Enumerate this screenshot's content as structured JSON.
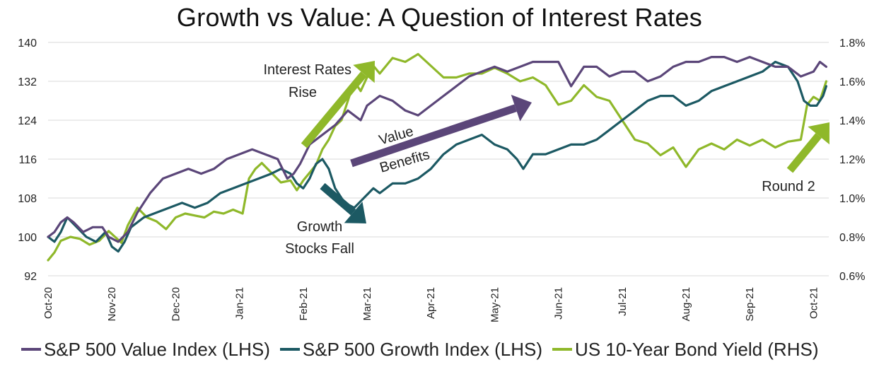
{
  "chart_data": {
    "type": "line",
    "title": "Growth vs Value: A Question of Interest Rates",
    "x_tick_labels": [
      "Oct-20",
      "Nov-20",
      "Dec-20",
      "Jan-21",
      "Feb-21",
      "Mar-21",
      "Apr-21",
      "May-21",
      "Jun-21",
      "Jul-21",
      "Aug-21",
      "Sep-21",
      "Oct-21"
    ],
    "ylim_left": [
      92,
      140
    ],
    "left_ticks": [
      "92",
      "100",
      "108",
      "116",
      "124",
      "132",
      "140"
    ],
    "ylim_right": [
      0.6,
      1.8
    ],
    "right_ticks": [
      "0.6%",
      "0.8%",
      "1.0%",
      "1.2%",
      "1.4%",
      "1.6%",
      "1.8%"
    ],
    "grid": "horizontal",
    "legend_position": "bottom",
    "series": [
      {
        "name": "S&P 500 Value Index (LHS)",
        "axis": "left",
        "color": "#5b4679",
        "x": [
          0,
          0.1,
          0.2,
          0.3,
          0.4,
          0.55,
          0.7,
          0.85,
          0.95,
          1.1,
          1.25,
          1.4,
          1.6,
          1.8,
          2.0,
          2.2,
          2.4,
          2.6,
          2.8,
          3.0,
          3.2,
          3.4,
          3.6,
          3.75,
          3.85,
          3.95,
          4.1,
          4.3,
          4.5,
          4.7,
          4.9,
          5.0,
          5.2,
          5.4,
          5.6,
          5.8,
          6.0,
          6.2,
          6.4,
          6.6,
          6.8,
          7.0,
          7.2,
          7.4,
          7.6,
          7.8,
          8.0,
          8.2,
          8.4,
          8.6,
          8.8,
          9.0,
          9.2,
          9.4,
          9.6,
          9.8,
          10.0,
          10.2,
          10.4,
          10.6,
          10.8,
          11.0,
          11.2,
          11.4,
          11.6,
          11.8,
          12.0,
          12.1,
          12.2
        ],
        "values": [
          100,
          101,
          103,
          104,
          103,
          101,
          102,
          102,
          100,
          99,
          101,
          105,
          109,
          112,
          113,
          114,
          113,
          114,
          116,
          117,
          118,
          117,
          116,
          112,
          113,
          115,
          119,
          121,
          123,
          126,
          124,
          127,
          129,
          128,
          126,
          125,
          127,
          129,
          131,
          133,
          134,
          135,
          134,
          135,
          136,
          136,
          136,
          131,
          135,
          135,
          133,
          134,
          134,
          132,
          133,
          135,
          136,
          136,
          137,
          137,
          136,
          137,
          136,
          135,
          135,
          133,
          134,
          136,
          135
        ]
      },
      {
        "name": "S&P 500 Growth Index (LHS)",
        "axis": "left",
        "color": "#1c5963",
        "x": [
          0,
          0.1,
          0.2,
          0.3,
          0.45,
          0.6,
          0.75,
          0.9,
          1.0,
          1.1,
          1.2,
          1.3,
          1.5,
          1.7,
          1.9,
          2.1,
          2.3,
          2.5,
          2.7,
          2.9,
          3.1,
          3.3,
          3.5,
          3.65,
          3.8,
          3.9,
          4.0,
          4.1,
          4.2,
          4.3,
          4.4,
          4.5,
          4.65,
          4.8,
          4.95,
          5.1,
          5.2,
          5.4,
          5.6,
          5.8,
          6.0,
          6.2,
          6.4,
          6.6,
          6.8,
          7.0,
          7.2,
          7.35,
          7.45,
          7.6,
          7.8,
          8.0,
          8.2,
          8.4,
          8.6,
          8.8,
          9.0,
          9.2,
          9.4,
          9.6,
          9.8,
          10.0,
          10.2,
          10.4,
          10.6,
          10.8,
          11.0,
          11.2,
          11.4,
          11.6,
          11.75,
          11.85,
          11.95,
          12.05,
          12.15,
          12.2
        ],
        "values": [
          100,
          99,
          101,
          104,
          102,
          100,
          99,
          101,
          98,
          97,
          99,
          102,
          104,
          105,
          106,
          107,
          106,
          107,
          109,
          110,
          111,
          112,
          113,
          114,
          113,
          111,
          110,
          112,
          115,
          116,
          114,
          110,
          107,
          106,
          108,
          110,
          109,
          111,
          111,
          112,
          114,
          117,
          119,
          120,
          121,
          119,
          118,
          116,
          114,
          117,
          117,
          118,
          119,
          119,
          120,
          122,
          124,
          126,
          128,
          129,
          129,
          127,
          128,
          130,
          131,
          132,
          133,
          134,
          136,
          135,
          132,
          128,
          127,
          127,
          129,
          131
        ]
      },
      {
        "name": "US 10-Year Bond Yield (RHS)",
        "axis": "right",
        "color": "#8fb82a",
        "x": [
          0,
          0.1,
          0.2,
          0.35,
          0.5,
          0.65,
          0.8,
          0.95,
          1.05,
          1.15,
          1.25,
          1.4,
          1.55,
          1.7,
          1.85,
          2.0,
          2.15,
          2.3,
          2.45,
          2.6,
          2.75,
          2.9,
          3.05,
          3.15,
          3.25,
          3.35,
          3.5,
          3.65,
          3.8,
          3.9,
          4.0,
          4.1,
          4.2,
          4.3,
          4.4,
          4.5,
          4.6,
          4.7,
          4.8,
          4.9,
          5.0,
          5.1,
          5.2,
          5.4,
          5.6,
          5.8,
          6.0,
          6.2,
          6.4,
          6.6,
          6.8,
          7.0,
          7.2,
          7.4,
          7.6,
          7.8,
          8.0,
          8.2,
          8.4,
          8.6,
          8.8,
          9.0,
          9.2,
          9.4,
          9.6,
          9.8,
          10.0,
          10.2,
          10.4,
          10.6,
          10.8,
          11.0,
          11.2,
          11.4,
          11.6,
          11.8,
          11.9,
          12.0,
          12.1,
          12.2
        ],
        "values": [
          0.68,
          0.72,
          0.78,
          0.8,
          0.79,
          0.76,
          0.78,
          0.83,
          0.8,
          0.77,
          0.86,
          0.95,
          0.9,
          0.88,
          0.84,
          0.9,
          0.92,
          0.91,
          0.9,
          0.93,
          0.92,
          0.94,
          0.92,
          1.1,
          1.15,
          1.18,
          1.13,
          1.08,
          1.09,
          1.04,
          1.09,
          1.13,
          1.17,
          1.25,
          1.3,
          1.37,
          1.4,
          1.5,
          1.6,
          1.55,
          1.62,
          1.68,
          1.64,
          1.72,
          1.7,
          1.74,
          1.68,
          1.62,
          1.62,
          1.64,
          1.64,
          1.67,
          1.64,
          1.6,
          1.62,
          1.58,
          1.48,
          1.5,
          1.58,
          1.52,
          1.5,
          1.4,
          1.3,
          1.28,
          1.22,
          1.26,
          1.16,
          1.25,
          1.28,
          1.25,
          1.3,
          1.27,
          1.3,
          1.26,
          1.29,
          1.3,
          1.48,
          1.52,
          1.5,
          1.6
        ]
      }
    ],
    "annotations": [
      {
        "lines": [
          "Interest Rates",
          "Rise"
        ]
      },
      {
        "lines": [
          "Value",
          "Benefits"
        ]
      },
      {
        "lines": [
          "Growth",
          "Stocks Fall"
        ]
      },
      {
        "lines": [
          "Round 2"
        ]
      }
    ]
  }
}
